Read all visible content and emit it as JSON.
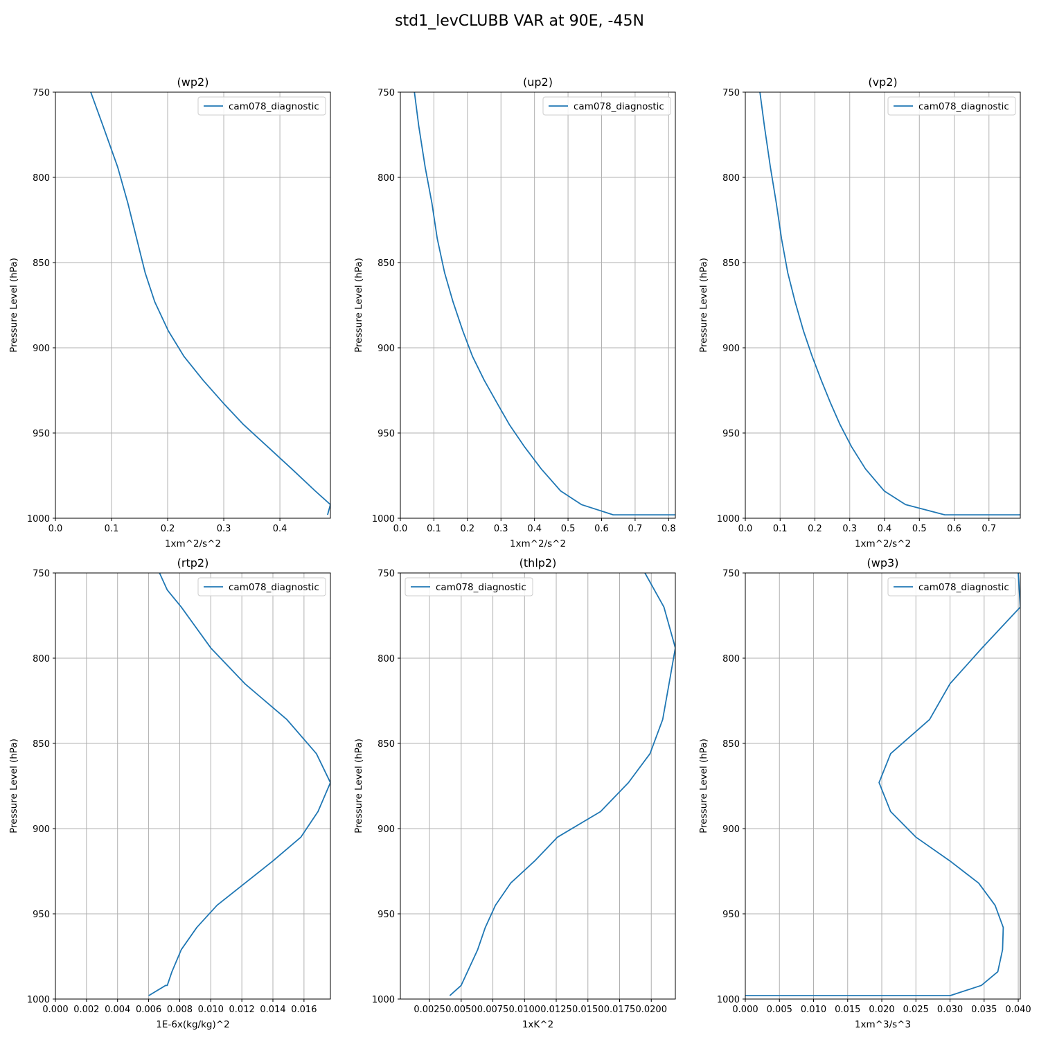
{
  "figure": {
    "title": "std1_levCLUBB VAR at 90E, -45N",
    "line_color": "#1f77b4",
    "grid_color": "#b0b0b0"
  },
  "chart_data": [
    {
      "type": "line",
      "title": "(wp2)",
      "xlabel": "1xm^2/s^2",
      "ylabel": "Pressure Level (hPa)",
      "xlim": [
        0.0,
        0.49
      ],
      "ylim": [
        1000,
        750
      ],
      "x_ticks": [
        "0.0",
        "0.1",
        "0.2",
        "0.3",
        "0.4"
      ],
      "x_tick_values": [
        0.0,
        0.1,
        0.2,
        0.3,
        0.4
      ],
      "y_ticks": [
        750,
        800,
        850,
        900,
        950,
        1000
      ],
      "grid": true,
      "legend": "top-right",
      "series": [
        {
          "name": "cam078_diagnostic",
          "x": [
            0.063,
            0.085,
            0.111,
            0.129,
            0.16,
            0.177,
            0.201,
            0.229,
            0.263,
            0.298,
            0.335,
            0.378,
            0.421,
            0.463,
            0.49,
            0.485
          ],
          "y": [
            750,
            770,
            794,
            815,
            856,
            873,
            890,
            905,
            919,
            932,
            945,
            958,
            971,
            984,
            992,
            998
          ]
        }
      ]
    },
    {
      "type": "line",
      "title": "(up2)",
      "xlabel": "1xm^2/s^2",
      "ylabel": "Pressure Level (hPa)",
      "xlim": [
        0.0,
        0.82
      ],
      "ylim": [
        1000,
        750
      ],
      "x_ticks": [
        "0.0",
        "0.1",
        "0.2",
        "0.3",
        "0.4",
        "0.5",
        "0.6",
        "0.7",
        "0.8"
      ],
      "x_tick_values": [
        0.0,
        0.1,
        0.2,
        0.3,
        0.4,
        0.5,
        0.6,
        0.7,
        0.8
      ],
      "y_ticks": [
        750,
        800,
        850,
        900,
        950,
        1000
      ],
      "grid": true,
      "legend": "top-right",
      "series": [
        {
          "name": "cam078_diagnostic",
          "x": [
            0.042,
            0.055,
            0.074,
            0.094,
            0.11,
            0.132,
            0.157,
            0.186,
            0.215,
            0.25,
            0.287,
            0.325,
            0.37,
            0.42,
            0.478,
            0.54,
            0.635,
            0.82
          ],
          "y": [
            750,
            770,
            794,
            815,
            836,
            856,
            873,
            890,
            905,
            919,
            932,
            945,
            958,
            971,
            984,
            992,
            998,
            998
          ]
        }
      ]
    },
    {
      "type": "line",
      "title": "(vp2)",
      "xlabel": "1xm^2/s^2",
      "ylabel": "Pressure Level (hPa)",
      "xlim": [
        0.0,
        0.79
      ],
      "ylim": [
        1000,
        750
      ],
      "x_ticks": [
        "0.0",
        "0.1",
        "0.2",
        "0.3",
        "0.4",
        "0.5",
        "0.6",
        "0.7"
      ],
      "x_tick_values": [
        0.0,
        0.1,
        0.2,
        0.3,
        0.4,
        0.5,
        0.6,
        0.7
      ],
      "y_ticks": [
        750,
        800,
        850,
        900,
        950,
        1000
      ],
      "grid": true,
      "legend": "top-right",
      "series": [
        {
          "name": "cam078_diagnostic",
          "x": [
            0.042,
            0.055,
            0.072,
            0.089,
            0.104,
            0.122,
            0.143,
            0.167,
            0.192,
            0.218,
            0.244,
            0.272,
            0.305,
            0.345,
            0.399,
            0.46,
            0.573,
            0.795
          ],
          "y": [
            750,
            770,
            794,
            815,
            836,
            856,
            873,
            890,
            905,
            919,
            932,
            945,
            958,
            971,
            984,
            992,
            998,
            998
          ]
        }
      ]
    },
    {
      "type": "line",
      "title": "(rtp2)",
      "xlabel": "1E-6x(kg/kg)^2",
      "ylabel": "Pressure Level (hPa)",
      "xlim": [
        0.0,
        0.0177
      ],
      "ylim": [
        1000,
        750
      ],
      "x_ticks": [
        "0.000",
        "0.002",
        "0.004",
        "0.006",
        "0.008",
        "0.010",
        "0.012",
        "0.014",
        "0.016"
      ],
      "x_tick_values": [
        0.0,
        0.002,
        0.004,
        0.006,
        0.008,
        0.01,
        0.012,
        0.014,
        0.016
      ],
      "y_ticks": [
        750,
        800,
        850,
        900,
        950,
        1000
      ],
      "grid": true,
      "legend": "top-right",
      "series": [
        {
          "name": "cam078_diagnostic",
          "x": [
            0.0067,
            0.0072,
            0.0081,
            0.01,
            0.0122,
            0.0149,
            0.0168,
            0.0177,
            0.0169,
            0.0158,
            0.014,
            0.0104,
            0.0091,
            0.0081,
            0.0075,
            0.0072,
            0.0071,
            0.006
          ],
          "y": [
            750,
            760,
            770,
            794,
            815,
            836,
            856,
            873,
            890,
            905,
            919,
            945,
            958,
            971,
            984,
            992,
            992,
            998
          ]
        }
      ]
    },
    {
      "type": "line",
      "title": "(thlp2)",
      "xlabel": "1xK^2",
      "ylabel": "Pressure Level (hPa)",
      "xlim": [
        0.0002,
        0.0219
      ],
      "ylim": [
        1000,
        750
      ],
      "x_ticks": [
        "0.0025",
        "0.0050",
        "0.0075",
        "0.0100",
        "0.0125",
        "0.0150",
        "0.0175",
        "0.0200"
      ],
      "x_tick_values": [
        0.0025,
        0.005,
        0.0075,
        0.01,
        0.0125,
        0.015,
        0.0175,
        0.02
      ],
      "y_ticks": [
        750,
        800,
        850,
        900,
        950,
        1000
      ],
      "grid": true,
      "legend": "top-left",
      "series": [
        {
          "name": "cam078_diagnostic",
          "x": [
            0.0195,
            0.021,
            0.0219,
            0.0214,
            0.0209,
            0.0199,
            0.0182,
            0.016,
            0.0126,
            0.0108,
            0.0089,
            0.0077,
            0.0069,
            0.0063,
            0.005,
            0.0041
          ],
          "y": [
            750,
            770,
            794,
            815,
            836,
            856,
            873,
            890,
            905,
            919,
            932,
            945,
            958,
            971,
            992,
            998
          ]
        }
      ]
    },
    {
      "type": "line",
      "title": "(wp3)",
      "xlabel": "1xm^3/s^3",
      "ylabel": "Pressure Level (hPa)",
      "xlim": [
        0.0,
        0.0403
      ],
      "ylim": [
        1000,
        750
      ],
      "x_ticks": [
        "0.000",
        "0.005",
        "0.010",
        "0.015",
        "0.020",
        "0.025",
        "0.030",
        "0.035",
        "0.040"
      ],
      "x_tick_values": [
        0.0,
        0.005,
        0.01,
        0.015,
        0.02,
        0.025,
        0.03,
        0.035,
        0.04
      ],
      "y_ticks": [
        750,
        800,
        850,
        900,
        950,
        1000
      ],
      "grid": true,
      "legend": "top-right",
      "series": [
        {
          "name": "cam078_diagnostic",
          "x": [
            0.04,
            0.0403,
            0.0347,
            0.03,
            0.027,
            0.0213,
            0.0196,
            0.0213,
            0.025,
            0.03,
            0.0342,
            0.0366,
            0.0378,
            0.0377,
            0.037,
            0.0346,
            0.03,
            0.0
          ],
          "y": [
            750,
            770,
            794,
            815,
            836,
            856,
            873,
            890,
            905,
            919,
            932,
            945,
            958,
            971,
            984,
            992,
            998,
            998
          ]
        }
      ]
    }
  ]
}
